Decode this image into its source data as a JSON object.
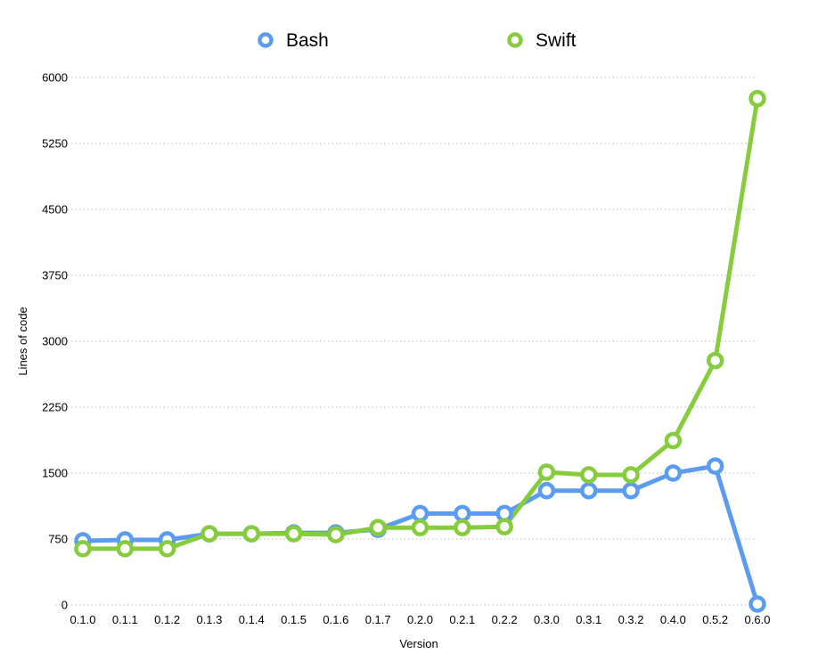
{
  "chart_data": {
    "type": "line",
    "xlabel": "Version",
    "ylabel": "Lines of code",
    "ylim": [
      0,
      6000
    ],
    "yticks": [
      0,
      750,
      1500,
      2250,
      3000,
      3750,
      4500,
      5250,
      6000
    ],
    "grid": true,
    "legend_position": "top-center",
    "categories": [
      "0.1.0",
      "0.1.1",
      "0.1.2",
      "0.1.3",
      "0.1.4",
      "0.1.5",
      "0.1.6",
      "0.1.7",
      "0.2.0",
      "0.2.1",
      "0.2.2",
      "0.3.0",
      "0.3.1",
      "0.3.2",
      "0.4.0",
      "0.5.2",
      "0.6.0"
    ],
    "series": [
      {
        "name": "Bash",
        "color": "#5b9cf0",
        "values": [
          730,
          740,
          740,
          810,
          810,
          820,
          820,
          860,
          1040,
          1040,
          1040,
          1300,
          1300,
          1300,
          1500,
          1580,
          10
        ]
      },
      {
        "name": "Swift",
        "color": "#86cc3d",
        "values": [
          640,
          640,
          640,
          810,
          810,
          810,
          800,
          880,
          880,
          880,
          890,
          1510,
          1480,
          1480,
          1870,
          2780,
          5760
        ]
      }
    ]
  }
}
